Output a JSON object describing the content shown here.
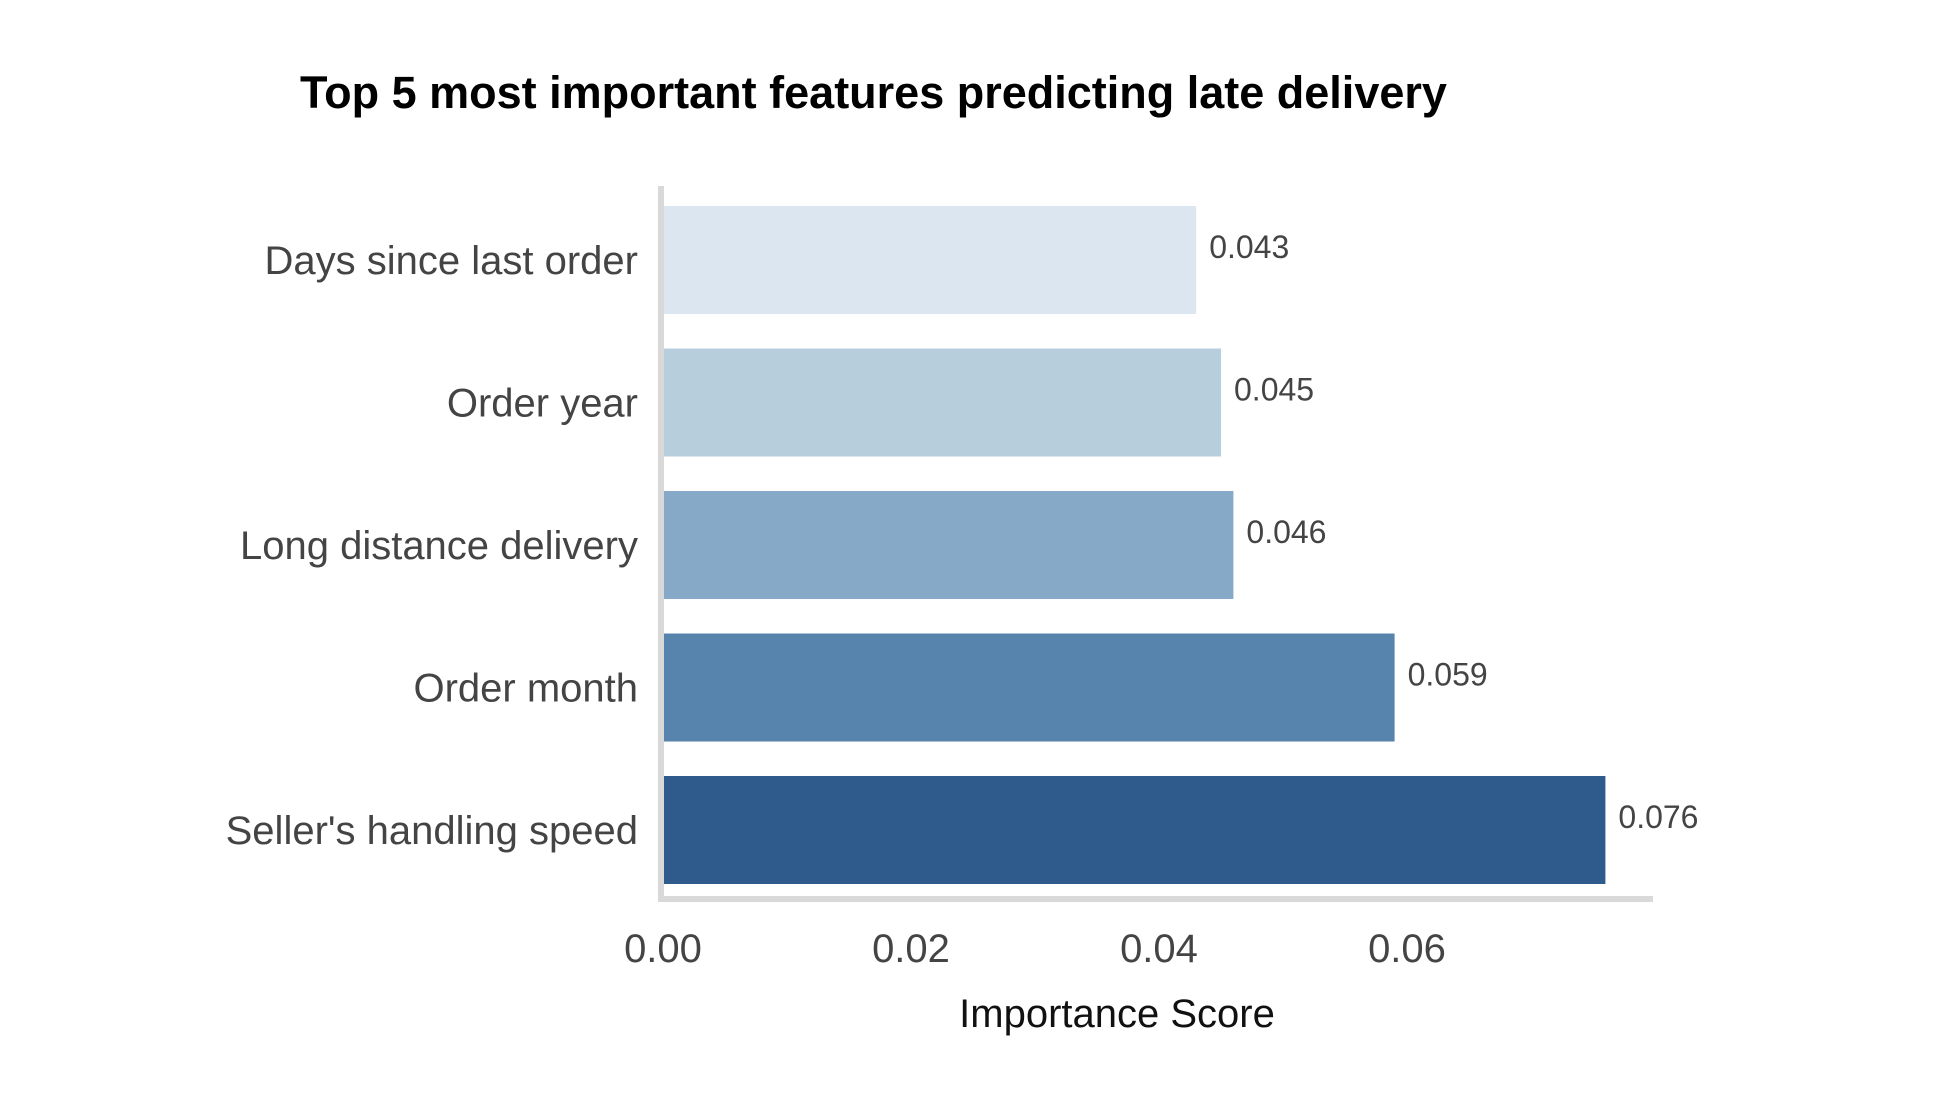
{
  "chart_data": {
    "type": "bar",
    "orientation": "horizontal",
    "title": "Top 5 most important features predicting late delivery",
    "xlabel": "Importance Score",
    "ylabel": "",
    "categories": [
      "Days since last order",
      "Order year",
      "Long distance delivery",
      "Order month",
      "Seller's handling speed"
    ],
    "values": [
      0.043,
      0.045,
      0.046,
      0.059,
      0.076
    ],
    "value_labels": [
      "0.043",
      "0.045",
      "0.046",
      "0.059",
      "0.076"
    ],
    "colors": [
      "#dce6f0",
      "#b7cedc",
      "#85a9c6",
      "#5784ac",
      "#2e5b8c"
    ],
    "xlim": [
      0,
      0.08
    ],
    "xticks": [
      0.0,
      0.02,
      0.04,
      0.06
    ],
    "xtick_labels": [
      "0.00",
      "0.02",
      "0.04",
      "0.06"
    ],
    "grid": false,
    "legend": "none"
  }
}
